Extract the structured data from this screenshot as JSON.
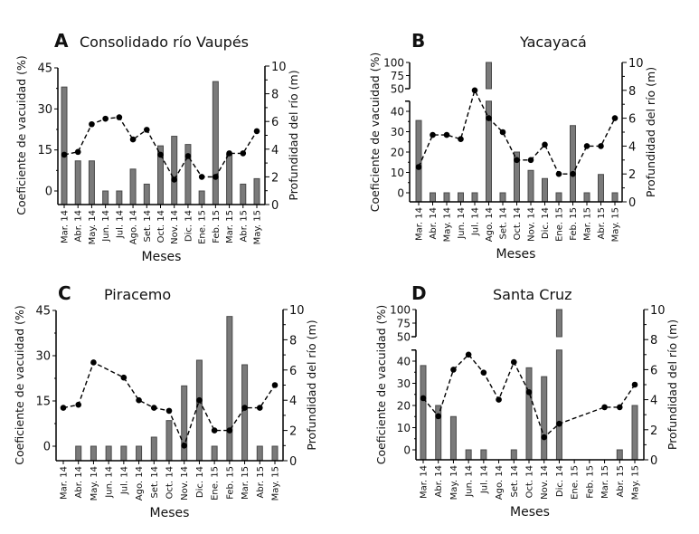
{
  "chart_data": [
    {
      "type": "bar+line",
      "panel_letter": "A",
      "title": "Consolidado río Vaupés",
      "xlabel": "Meses",
      "ylabel": "Coeficiente de vacuidad (%)",
      "y2label": "Profundidad del río (m)",
      "categories": [
        "Mar. 14",
        "Abr. 14",
        "May. 14",
        "Jun. 14",
        "Jul. 14",
        "Ago. 14",
        "Set. 14",
        "Oct. 14",
        "Nov. 14",
        "Dic. 14",
        "Ene. 15",
        "Feb. 15",
        "Mar. 15",
        "Abr. 15",
        "May. 15"
      ],
      "yticks": [
        0,
        15,
        30,
        45
      ],
      "ylim": [
        -5,
        45
      ],
      "y2ticks": [
        0,
        2,
        4,
        6,
        8,
        10
      ],
      "y2lim": [
        0,
        10
      ],
      "series": [
        {
          "name": "Coeficiente de vacuidad",
          "kind": "bar",
          "values": [
            38,
            11,
            11,
            0,
            0,
            8,
            2.5,
            16.5,
            20,
            17,
            0,
            40,
            13.5,
            2.5,
            4.5
          ]
        },
        {
          "name": "Profundidad del río",
          "kind": "line",
          "values": [
            3.6,
            3.8,
            5.8,
            6.2,
            6.3,
            4.7,
            5.4,
            3.6,
            1.8,
            3.5,
            2,
            2,
            3.7,
            3.7,
            5.3
          ]
        }
      ]
    },
    {
      "type": "bar+line",
      "panel_letter": "B",
      "title": "Yacayacá",
      "xlabel": "Meses",
      "ylabel": "Coeficiente de vacuidad (%)",
      "y2label": "Profundidad del río (m)",
      "categories": [
        "Mar. 14",
        "Abr. 14",
        "May. 14",
        "Jun. 14",
        "Jul. 14",
        "Ago. 14",
        "Set. 14",
        "Oct. 14",
        "Nov. 14",
        "Dic. 14",
        "Ene. 15",
        "Feb. 15",
        "Mar. 15",
        "Abr. 15",
        "May. 15"
      ],
      "yticks": [
        0,
        10,
        20,
        30,
        40,
        50,
        75,
        100
      ],
      "ylim": [
        -5,
        100
      ],
      "axis_break": [
        45,
        50
      ],
      "y2ticks": [
        0,
        2,
        4,
        6,
        8,
        10
      ],
      "y2lim": [
        0,
        10
      ],
      "series": [
        {
          "name": "Coeficiente de vacuidad",
          "kind": "bar",
          "values": [
            35.5,
            0,
            0,
            0,
            0,
            100,
            0,
            20,
            11,
            7,
            0,
            33,
            0,
            9,
            0
          ]
        },
        {
          "name": "Profundidad del río",
          "kind": "line",
          "values": [
            2.5,
            4.8,
            4.8,
            4.5,
            8,
            6,
            5,
            3,
            3,
            4.1,
            2,
            2,
            4,
            4,
            6
          ]
        }
      ]
    },
    {
      "type": "bar+line",
      "panel_letter": "C",
      "title": "Piracemo",
      "xlabel": "Meses",
      "ylabel": "Coeficiente de vacuidad (%)",
      "y2label": "Profundidad del río (m)",
      "categories": [
        "Mar. 14",
        "Abr. 14",
        "May. 14",
        "Jun. 14",
        "Jul. 14",
        "Ago. 14",
        "Set. 14",
        "Oct. 14",
        "Nov. 14",
        "Dic. 14",
        "Ene. 15",
        "Feb. 15",
        "Mar. 15",
        "Abr. 15",
        "May. 15"
      ],
      "yticks": [
        0,
        15,
        30,
        45
      ],
      "ylim": [
        -5,
        45
      ],
      "y2ticks": [
        0,
        2,
        4,
        6,
        8,
        10
      ],
      "y2lim": [
        0,
        10
      ],
      "series": [
        {
          "name": "Coeficiente de vacuidad",
          "kind": "bar",
          "values": [
            null,
            0,
            0,
            0,
            0,
            0,
            3,
            8.5,
            20,
            28.5,
            0,
            43,
            27,
            0,
            0
          ]
        },
        {
          "name": "Profundidad del río",
          "kind": "line",
          "values": [
            3.5,
            3.7,
            6.5,
            null,
            5.5,
            4,
            3.5,
            3.3,
            1,
            4,
            2,
            2,
            3.5,
            3.5,
            5
          ]
        }
      ]
    },
    {
      "type": "bar+line",
      "panel_letter": "D",
      "title": "Santa Cruz",
      "xlabel": "Meses",
      "ylabel": "Coeficiente de vacuidad (%)",
      "y2label": "Profundidad del río (m)",
      "categories": [
        "Mar. 14",
        "Abr. 14",
        "May. 14",
        "Jun. 14",
        "Jul. 14",
        "Ago. 14",
        "Set. 14",
        "Oct. 14",
        "Nov. 14",
        "Dic. 14",
        "Ene. 15",
        "Feb. 15",
        "Mar. 15",
        "Abr. 15",
        "May. 15"
      ],
      "yticks": [
        0,
        10,
        20,
        30,
        40,
        50,
        75,
        100
      ],
      "ylim": [
        -5,
        100
      ],
      "axis_break": [
        45,
        50
      ],
      "y2ticks": [
        0,
        2,
        4,
        6,
        8,
        10
      ],
      "y2lim": [
        0,
        10
      ],
      "series": [
        {
          "name": "Coeficiente de vacuidad",
          "kind": "bar",
          "values": [
            38,
            20,
            15,
            0,
            0,
            null,
            0,
            37,
            33,
            100,
            null,
            null,
            null,
            0,
            20
          ]
        },
        {
          "name": "Profundidad del río",
          "kind": "line",
          "values": [
            4.1,
            2.9,
            6,
            7,
            5.8,
            4,
            6.5,
            4.5,
            1.5,
            2.4,
            null,
            null,
            3.5,
            3.5,
            5
          ]
        }
      ]
    }
  ],
  "colors": {
    "bar_fill": "#7a7a7a",
    "bar_stroke": "#4a4a4a",
    "line": "#000000"
  }
}
